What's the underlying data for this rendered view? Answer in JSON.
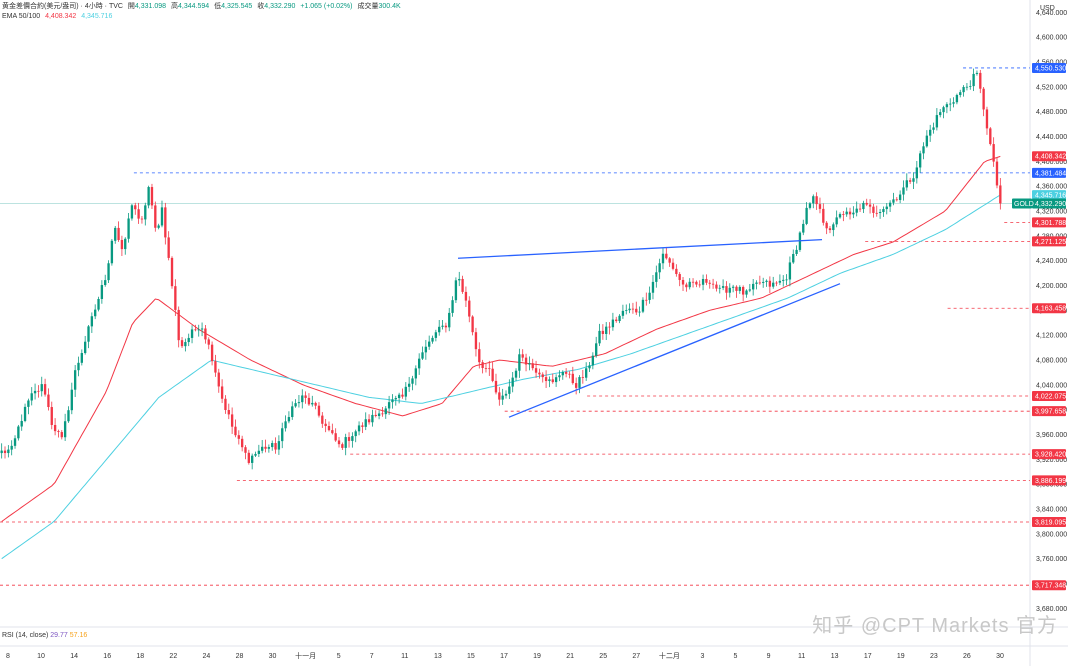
{
  "header": {
    "symbol_line": "黄金差價合約(美元/盎司) · 4小時 · TVC",
    "open_label": "開",
    "open_value": "4,331.098",
    "high_label": "高",
    "high_value": "4,344.594",
    "low_label": "低",
    "low_value": "4,325.545",
    "close_label": "收",
    "close_value": "4,332.290",
    "change": "+1.065 (+0.02%)",
    "volume_label": "成交量",
    "volume_value": "300.4K",
    "ema_label": "EMA 50/100",
    "ema50_value": "4,408.342",
    "ema100_value": "4,345.716"
  },
  "rsi": {
    "label": "RSI (14, close)",
    "value1": "29.77",
    "value2": "57.16"
  },
  "watermark": "知乎 @CPT Markets 官方",
  "currency": "USD",
  "colors": {
    "up": "#089981",
    "down": "#f23645",
    "ema50": "#f23645",
    "ema100": "#4dd0e1",
    "trendline": "#2962ff",
    "level_red": "#f23645",
    "level_blue": "#2962ff",
    "price_teal": "#089981"
  },
  "chart_data": {
    "type": "candlestick",
    "y_range": [
      3650,
      4660
    ],
    "y_ticks": [
      3680,
      3720,
      3760,
      3800,
      3840,
      3880,
      3920,
      3960,
      4000,
      4040,
      4080,
      4120,
      4160,
      4200,
      4240,
      4280,
      4320,
      4360,
      4400,
      4440,
      4480,
      4520,
      4560,
      4600,
      4640
    ],
    "x_ticks": [
      "8",
      "10",
      "14",
      "16",
      "18",
      "22",
      "24",
      "28",
      "30",
      "十一月",
      "5",
      "7",
      "11",
      "13",
      "15",
      "17",
      "19",
      "21",
      "25",
      "27",
      "十二月",
      "3",
      "5",
      "9",
      "11",
      "13",
      "17",
      "19",
      "23",
      "26",
      "30"
    ],
    "n_bars": 300,
    "anchors": [
      [
        0,
        3932
      ],
      [
        8,
        3935
      ],
      [
        14,
        3980
      ],
      [
        22,
        4020
      ],
      [
        32,
        4040
      ],
      [
        38,
        3980
      ],
      [
        46,
        3950
      ],
      [
        56,
        4060
      ],
      [
        68,
        4140
      ],
      [
        80,
        4220
      ],
      [
        86,
        4300
      ],
      [
        92,
        4250
      ],
      [
        100,
        4340
      ],
      [
        106,
        4290
      ],
      [
        112,
        4360
      ],
      [
        118,
        4280
      ],
      [
        122,
        4330
      ],
      [
        130,
        4200
      ],
      [
        136,
        4100
      ],
      [
        144,
        4120
      ],
      [
        152,
        4140
      ],
      [
        160,
        4090
      ],
      [
        168,
        4020
      ],
      [
        178,
        3960
      ],
      [
        188,
        3920
      ],
      [
        200,
        3940
      ],
      [
        210,
        3940
      ],
      [
        220,
        4000
      ],
      [
        230,
        4020
      ],
      [
        238,
        4005
      ],
      [
        248,
        3970
      ],
      [
        258,
        3940
      ],
      [
        268,
        3962
      ],
      [
        278,
        3980
      ],
      [
        288,
        3995
      ],
      [
        296,
        4010
      ],
      [
        306,
        4020
      ],
      [
        318,
        4080
      ],
      [
        330,
        4120
      ],
      [
        340,
        4140
      ],
      [
        348,
        4220
      ],
      [
        356,
        4160
      ],
      [
        364,
        4080
      ],
      [
        372,
        4060
      ],
      [
        380,
        4010
      ],
      [
        388,
        4040
      ],
      [
        396,
        4090
      ],
      [
        404,
        4070
      ],
      [
        412,
        4060
      ],
      [
        420,
        4040
      ],
      [
        428,
        4065
      ],
      [
        438,
        4040
      ],
      [
        446,
        4060
      ],
      [
        456,
        4120
      ],
      [
        466,
        4140
      ],
      [
        476,
        4160
      ],
      [
        486,
        4160
      ],
      [
        496,
        4200
      ],
      [
        504,
        4250
      ],
      [
        512,
        4230
      ],
      [
        520,
        4200
      ],
      [
        530,
        4200
      ],
      [
        540,
        4210
      ],
      [
        548,
        4190
      ],
      [
        558,
        4200
      ],
      [
        568,
        4185
      ],
      [
        578,
        4205
      ],
      [
        588,
        4200
      ],
      [
        598,
        4210
      ],
      [
        606,
        4260
      ],
      [
        614,
        4320
      ],
      [
        620,
        4340
      ],
      [
        628,
        4300
      ],
      [
        634,
        4290
      ],
      [
        640,
        4320
      ],
      [
        648,
        4310
      ],
      [
        656,
        4330
      ],
      [
        666,
        4320
      ],
      [
        676,
        4330
      ],
      [
        686,
        4350
      ],
      [
        696,
        4380
      ],
      [
        706,
        4440
      ],
      [
        716,
        4480
      ],
      [
        726,
        4500
      ],
      [
        736,
        4520
      ],
      [
        744,
        4540
      ],
      [
        750,
        4480
      ],
      [
        758,
        4380
      ],
      [
        762,
        4332
      ]
    ],
    "ema50_anchors": [
      [
        0,
        3820
      ],
      [
        40,
        3880
      ],
      [
        80,
        4030
      ],
      [
        100,
        4140
      ],
      [
        118,
        4180
      ],
      [
        150,
        4130
      ],
      [
        190,
        4080
      ],
      [
        230,
        4040
      ],
      [
        270,
        4010
      ],
      [
        306,
        3990
      ],
      [
        336,
        4010
      ],
      [
        360,
        4070
      ],
      [
        380,
        4080
      ],
      [
        420,
        4070
      ],
      [
        460,
        4090
      ],
      [
        500,
        4130
      ],
      [
        540,
        4160
      ],
      [
        580,
        4180
      ],
      [
        620,
        4220
      ],
      [
        650,
        4250
      ],
      [
        680,
        4270
      ],
      [
        720,
        4320
      ],
      [
        750,
        4400
      ],
      [
        762,
        4408
      ]
    ],
    "ema100_anchors": [
      [
        0,
        3760
      ],
      [
        40,
        3820
      ],
      [
        80,
        3920
      ],
      [
        120,
        4020
      ],
      [
        160,
        4080
      ],
      [
        200,
        4060
      ],
      [
        240,
        4040
      ],
      [
        280,
        4020
      ],
      [
        320,
        4010
      ],
      [
        360,
        4030
      ],
      [
        400,
        4050
      ],
      [
        440,
        4065
      ],
      [
        480,
        4090
      ],
      [
        520,
        4120
      ],
      [
        560,
        4150
      ],
      [
        600,
        4180
      ],
      [
        640,
        4220
      ],
      [
        680,
        4250
      ],
      [
        720,
        4290
      ],
      [
        750,
        4330
      ],
      [
        762,
        4346
      ]
    ],
    "levels": [
      {
        "price": 4550.53,
        "label": "4,550.530",
        "style": "blue",
        "start_frac": 0.935
      },
      {
        "price": 4408.342,
        "label": "4,408.342",
        "style": "red-fill",
        "start_frac": 1.0
      },
      {
        "price": 4381.484,
        "label": "4,381.484",
        "style": "blue",
        "start_frac": 0.13
      },
      {
        "price": 4345.716,
        "label": "4,345.716",
        "style": "cyan-fill",
        "start_frac": 1.0
      },
      {
        "price": 4332.29,
        "label": "4,332.290",
        "style": "teal-fill",
        "start_frac": 0.0
      },
      {
        "price": 4301.788,
        "label": "4,301.788",
        "style": "red",
        "start_frac": 0.975
      },
      {
        "price": 4271.125,
        "label": "4,271.125",
        "style": "red",
        "start_frac": 0.84
      },
      {
        "price": 4163.458,
        "label": "4,163.458",
        "style": "red",
        "start_frac": 0.92
      },
      {
        "price": 4022.075,
        "label": "4,022.075",
        "style": "red",
        "start_frac": 0.57
      },
      {
        "price": 3997.658,
        "label": "3,997.658",
        "style": "red",
        "start_frac": 0.49
      },
      {
        "price": 3928.42,
        "label": "3,928.420",
        "style": "red",
        "start_frac": 0.34
      },
      {
        "price": 3886.199,
        "label": "3,886.199",
        "style": "red",
        "start_frac": 0.23
      },
      {
        "price": 3819.095,
        "label": "3,819.095",
        "style": "red",
        "start_frac": 0.0
      },
      {
        "price": 3717.348,
        "label": "3,717.348",
        "style": "red",
        "start_frac": 0.0
      }
    ],
    "gold_tag": "GOLD",
    "trendlines": [
      {
        "from": [
          458,
          4244
        ],
        "to": [
          822,
          4274
        ]
      },
      {
        "from": [
          509,
          3988
        ],
        "to": [
          840,
          4203
        ]
      }
    ]
  }
}
